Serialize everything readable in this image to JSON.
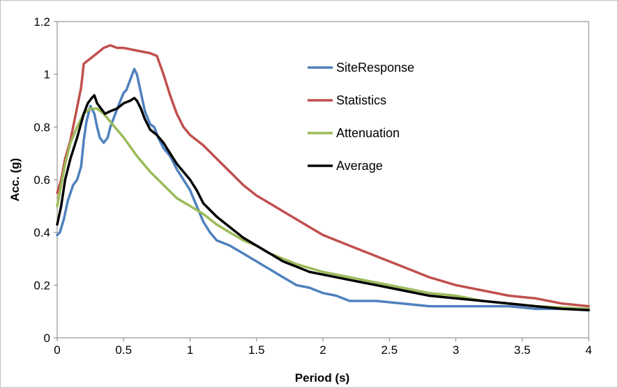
{
  "chart_data": {
    "type": "line",
    "title": "",
    "xlabel": "Period (s)",
    "ylabel": "Acc. (g)",
    "xlim": [
      0,
      4
    ],
    "ylim": [
      0,
      1.2
    ],
    "xticks": [
      "0",
      "0.5",
      "1",
      "1.5",
      "2",
      "2.5",
      "3",
      "3.5",
      "4"
    ],
    "yticks": [
      "0",
      "0.2",
      "0.4",
      "0.6",
      "0.8",
      "1",
      "1.2"
    ],
    "grid": false,
    "legend_position": "top-right",
    "series": [
      {
        "name": "SiteResponse",
        "color": "#4f81bd",
        "x": [
          0,
          0.02,
          0.05,
          0.08,
          0.1,
          0.12,
          0.15,
          0.18,
          0.2,
          0.22,
          0.25,
          0.28,
          0.3,
          0.32,
          0.35,
          0.38,
          0.4,
          0.43,
          0.46,
          0.5,
          0.52,
          0.55,
          0.58,
          0.6,
          0.63,
          0.66,
          0.7,
          0.73,
          0.76,
          0.8,
          0.85,
          0.9,
          0.95,
          1.0,
          1.05,
          1.1,
          1.15,
          1.2,
          1.3,
          1.4,
          1.5,
          1.6,
          1.7,
          1.8,
          1.9,
          2.0,
          2.1,
          2.2,
          2.4,
          2.6,
          2.8,
          3.0,
          3.2,
          3.4,
          3.6,
          3.8,
          4.0
        ],
        "y": [
          0.39,
          0.4,
          0.45,
          0.52,
          0.55,
          0.58,
          0.6,
          0.65,
          0.75,
          0.82,
          0.88,
          0.85,
          0.8,
          0.76,
          0.74,
          0.76,
          0.8,
          0.84,
          0.88,
          0.93,
          0.94,
          0.98,
          1.02,
          1.0,
          0.93,
          0.86,
          0.81,
          0.8,
          0.76,
          0.72,
          0.69,
          0.64,
          0.6,
          0.56,
          0.5,
          0.44,
          0.4,
          0.37,
          0.35,
          0.32,
          0.29,
          0.26,
          0.23,
          0.2,
          0.19,
          0.17,
          0.16,
          0.14,
          0.14,
          0.13,
          0.12,
          0.12,
          0.12,
          0.12,
          0.11,
          0.11,
          0.11
        ]
      },
      {
        "name": "Statistics",
        "color": "#c0504d",
        "x": [
          0,
          0.03,
          0.06,
          0.1,
          0.14,
          0.18,
          0.2,
          0.25,
          0.3,
          0.35,
          0.4,
          0.45,
          0.5,
          0.6,
          0.7,
          0.75,
          0.8,
          0.85,
          0.9,
          0.95,
          1.0,
          1.1,
          1.2,
          1.3,
          1.4,
          1.5,
          1.6,
          1.7,
          1.8,
          1.9,
          2.0,
          2.2,
          2.4,
          2.6,
          2.8,
          3.0,
          3.2,
          3.4,
          3.6,
          3.8,
          4.0
        ],
        "y": [
          0.55,
          0.6,
          0.68,
          0.75,
          0.85,
          0.95,
          1.04,
          1.06,
          1.08,
          1.1,
          1.11,
          1.1,
          1.1,
          1.09,
          1.08,
          1.07,
          1.0,
          0.92,
          0.85,
          0.8,
          0.77,
          0.73,
          0.68,
          0.63,
          0.58,
          0.54,
          0.51,
          0.48,
          0.45,
          0.42,
          0.39,
          0.35,
          0.31,
          0.27,
          0.23,
          0.2,
          0.18,
          0.16,
          0.15,
          0.13,
          0.12
        ]
      },
      {
        "name": "Attenuation",
        "color": "#9bbb59",
        "x": [
          0,
          0.03,
          0.06,
          0.1,
          0.15,
          0.2,
          0.25,
          0.3,
          0.35,
          0.4,
          0.5,
          0.6,
          0.7,
          0.8,
          0.9,
          1.0,
          1.1,
          1.2,
          1.3,
          1.4,
          1.5,
          1.6,
          1.7,
          1.8,
          2.0,
          2.2,
          2.4,
          2.6,
          2.8,
          3.0,
          3.2,
          3.4,
          3.6,
          3.8,
          4.0
        ],
        "y": [
          0.5,
          0.58,
          0.66,
          0.74,
          0.8,
          0.85,
          0.87,
          0.87,
          0.85,
          0.82,
          0.76,
          0.69,
          0.63,
          0.58,
          0.53,
          0.5,
          0.47,
          0.43,
          0.4,
          0.37,
          0.35,
          0.32,
          0.3,
          0.28,
          0.25,
          0.23,
          0.21,
          0.19,
          0.17,
          0.16,
          0.14,
          0.13,
          0.12,
          0.115,
          0.11
        ]
      },
      {
        "name": "Average",
        "color": "#000000",
        "x": [
          0,
          0.03,
          0.06,
          0.1,
          0.15,
          0.2,
          0.23,
          0.26,
          0.28,
          0.3,
          0.33,
          0.36,
          0.4,
          0.45,
          0.5,
          0.55,
          0.58,
          0.6,
          0.63,
          0.66,
          0.7,
          0.75,
          0.8,
          0.85,
          0.9,
          0.95,
          1.0,
          1.05,
          1.1,
          1.2,
          1.3,
          1.4,
          1.5,
          1.6,
          1.7,
          1.8,
          1.9,
          2.0,
          2.2,
          2.4,
          2.6,
          2.8,
          3.0,
          3.2,
          3.4,
          3.6,
          3.8,
          4.0
        ],
        "y": [
          0.43,
          0.5,
          0.6,
          0.68,
          0.76,
          0.85,
          0.89,
          0.91,
          0.92,
          0.89,
          0.87,
          0.85,
          0.86,
          0.87,
          0.89,
          0.9,
          0.91,
          0.9,
          0.87,
          0.83,
          0.79,
          0.77,
          0.74,
          0.7,
          0.66,
          0.63,
          0.6,
          0.56,
          0.51,
          0.46,
          0.42,
          0.38,
          0.35,
          0.32,
          0.29,
          0.27,
          0.25,
          0.24,
          0.22,
          0.2,
          0.18,
          0.16,
          0.15,
          0.14,
          0.13,
          0.12,
          0.11,
          0.105
        ]
      }
    ]
  }
}
